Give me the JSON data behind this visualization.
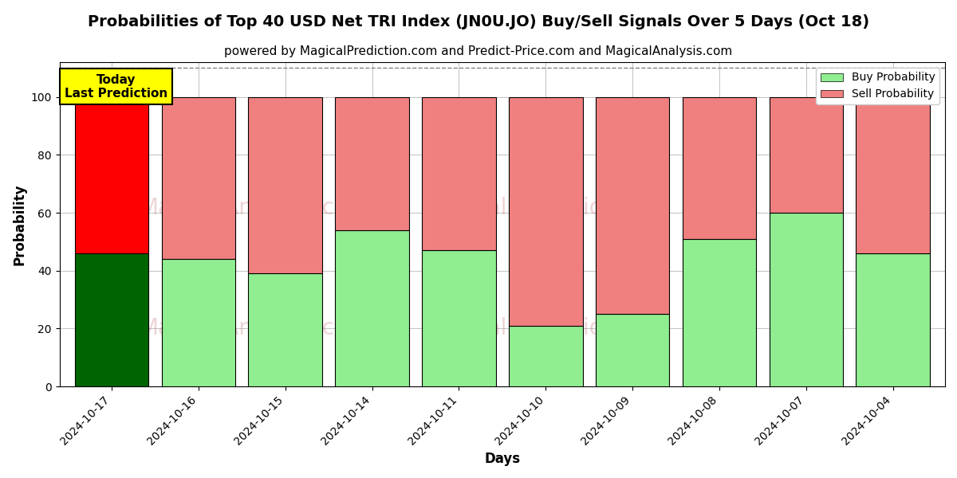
{
  "title": "Probabilities of Top 40 USD Net TRI Index (JN0U.JO) Buy/Sell Signals Over 5 Days (Oct 18)",
  "subtitle": "powered by MagicalPrediction.com and Predict-Price.com and MagicalAnalysis.com",
  "xlabel": "Days",
  "ylabel": "Probability",
  "categories": [
    "2024-10-17",
    "2024-10-16",
    "2024-10-15",
    "2024-10-14",
    "2024-10-11",
    "2024-10-10",
    "2024-10-09",
    "2024-10-08",
    "2024-10-07",
    "2024-10-04"
  ],
  "buy_values": [
    46,
    44,
    39,
    54,
    47,
    21,
    25,
    51,
    60,
    46
  ],
  "sell_values": [
    54,
    56,
    61,
    46,
    53,
    79,
    75,
    49,
    40,
    54
  ],
  "today_bar_index": 0,
  "buy_color_today": "#006400",
  "sell_color_today": "#FF0000",
  "buy_color_rest": "#90EE90",
  "sell_color_rest": "#F08080",
  "today_label_bg": "#FFFF00",
  "ylim": [
    0,
    112
  ],
  "dashed_line_y": 110,
  "grid_color": "#aaaaaa",
  "background_color": "#ffffff",
  "legend_buy_label": "Buy Probability",
  "legend_sell_label": "Sell Probability",
  "bar_width": 0.85,
  "title_fontsize": 14,
  "subtitle_fontsize": 11,
  "axis_label_fontsize": 12,
  "tick_fontsize": 10
}
